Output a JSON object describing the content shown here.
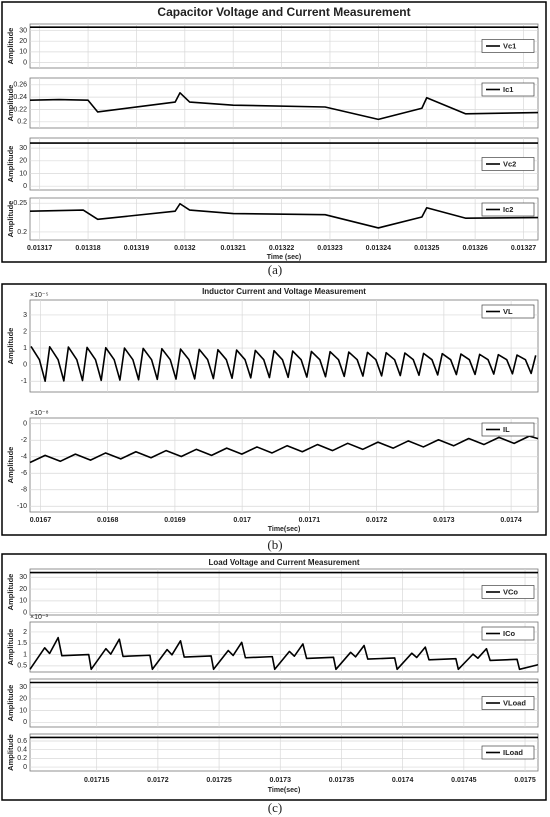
{
  "chart_data": [
    {
      "type": "line",
      "title": "Capacitor Voltage and Current Measurement",
      "xlabel": "Time (sec)",
      "caption": "(a)",
      "grid": true,
      "xlim": [
        0.013168,
        0.013273
      ],
      "xticks": [
        0.01317,
        0.01318,
        0.01319,
        0.0132,
        0.01321,
        0.01322,
        0.01323,
        0.01324,
        0.01325,
        0.01326,
        0.01327
      ],
      "subplots": [
        {
          "ylabel": "Amplitude",
          "ylim": [
            -5,
            36
          ],
          "yticks": [
            0,
            10,
            20,
            30
          ],
          "legend": "east",
          "series": [
            {
              "name": "Vc1",
              "color": "#000000",
              "x": [
                0.013168,
                0.013273
              ],
              "values": [
                33,
                33
              ]
            }
          ]
        },
        {
          "ylabel": "Amplitude",
          "ylim": [
            0.19,
            0.271
          ],
          "yticks": [
            0.2,
            0.22,
            0.24,
            0.26
          ],
          "legend": "northeast",
          "series": [
            {
              "name": "Ic1",
              "color": "#000000",
              "x": [
                0.013168,
                0.013174,
                0.01318,
                0.013182,
                0.013198,
                0.013199,
                0.013201,
                0.01321,
                0.013229,
                0.01324,
                0.013249,
                0.01325,
                0.013258,
                0.013273
              ],
              "values": [
                0.235,
                0.236,
                0.235,
                0.216,
                0.232,
                0.247,
                0.232,
                0.227,
                0.224,
                0.204,
                0.222,
                0.239,
                0.213,
                0.215
              ]
            }
          ]
        },
        {
          "ylabel": "Amplitude",
          "ylim": [
            -3,
            38
          ],
          "yticks": [
            0,
            10,
            20,
            30
          ],
          "legend": "east",
          "series": [
            {
              "name": "Vc2",
              "color": "#000000",
              "x": [
                0.013168,
                0.013273
              ],
              "values": [
                34,
                34
              ]
            }
          ]
        },
        {
          "ylabel": "Amplitude",
          "ylim": [
            0.186,
            0.259
          ],
          "yticks": [
            0.2,
            0.25
          ],
          "legend": "northeast",
          "series": [
            {
              "name": "Ic2",
              "color": "#000000",
              "x": [
                0.013168,
                0.013179,
                0.013182,
                0.013198,
                0.013199,
                0.013201,
                0.01321,
                0.013229,
                0.01324,
                0.013249,
                0.01325,
                0.013258,
                0.013273
              ],
              "values": [
                0.236,
                0.238,
                0.222,
                0.236,
                0.249,
                0.238,
                0.232,
                0.23,
                0.207,
                0.226,
                0.242,
                0.224,
                0.225
              ]
            }
          ]
        }
      ]
    },
    {
      "type": "line",
      "title": "Inductor Current and Voltage Measurement",
      "xlabel": "Time(sec)",
      "caption": "(b)",
      "grid": true,
      "xlim": [
        0.0166845,
        0.01744
      ],
      "xticks": [
        0.0167,
        0.0168,
        0.0169,
        0.017,
        0.0171,
        0.0172,
        0.0173,
        0.0174
      ],
      "subplots": [
        {
          "ylabel": "Amplitude",
          "yexponent_label": "×10⁻⁵",
          "ylim": [
            -1.65,
            3.9
          ],
          "yticks": [
            -1,
            0,
            1,
            2,
            3
          ],
          "legend": "northeast",
          "series": [
            {
              "name": "VL",
              "color": "#000000",
              "x": [
                0.016686,
                0.0166985,
                0.016707,
                0.0167138,
                0.0167263,
                0.0167348,
                0.0167416,
                0.0167541,
                0.0167626,
                0.0167694,
                0.0167819,
                0.0167904,
                0.0167972,
                0.0168097,
                0.0168182,
                0.016825,
                0.0168375,
                0.016846,
                0.0168528,
                0.0168653,
                0.0168738,
                0.0168806,
                0.0168931,
                0.0169016,
                0.0169084,
                0.0169209,
                0.0169294,
                0.0169362,
                0.0169487,
                0.0169572,
                0.016964,
                0.0169765,
                0.016985,
                0.0169918,
                0.0170043,
                0.0170128,
                0.0170196,
                0.0170321,
                0.0170406,
                0.0170474,
                0.0170599,
                0.0170684,
                0.0170752,
                0.0170877,
                0.0170962,
                0.017103,
                0.0171155,
                0.017124,
                0.0171308,
                0.0171433,
                0.0171518,
                0.0171586,
                0.0171711,
                0.0171796,
                0.0171864,
                0.0171989,
                0.0172074,
                0.0172142,
                0.0172267,
                0.0172352,
                0.017242,
                0.0172545,
                0.017263,
                0.0172698,
                0.0172823,
                0.0172908,
                0.0172976,
                0.0173101,
                0.0173186,
                0.0173254,
                0.0173379,
                0.0173464,
                0.0173532,
                0.0173657,
                0.0173742,
                0.017381,
                0.0173935,
                0.017402,
                0.0174088,
                0.0174213,
                0.0174298,
                0.0174366
              ],
              "values": [
                1.1,
                0.3,
                -1.0,
                1.08,
                0.3,
                -0.98,
                1.06,
                0.3,
                -0.96,
                1.04,
                0.3,
                -0.95,
                1.02,
                0.3,
                -0.93,
                1.0,
                0.3,
                -0.91,
                0.98,
                0.3,
                -0.89,
                0.96,
                0.3,
                -0.87,
                0.94,
                0.3,
                -0.86,
                0.92,
                0.3,
                -0.84,
                0.9,
                0.3,
                -0.82,
                0.88,
                0.3,
                -0.8,
                0.86,
                0.3,
                -0.78,
                0.84,
                0.3,
                -0.77,
                0.82,
                0.3,
                -0.75,
                0.8,
                0.3,
                -0.73,
                0.78,
                0.3,
                -0.71,
                0.76,
                0.3,
                -0.69,
                0.74,
                0.3,
                -0.68,
                0.72,
                0.3,
                -0.66,
                0.7,
                0.3,
                -0.64,
                0.68,
                0.3,
                -0.62,
                0.66,
                0.3,
                -0.6,
                0.64,
                0.3,
                -0.59,
                0.62,
                0.3,
                -0.57,
                0.6,
                0.3,
                -0.55,
                0.58,
                0.3,
                -0.53,
                0.56
              ]
            }
          ]
        },
        {
          "ylabel": "Amplitude",
          "yexponent_label": "×10⁻⁸",
          "ylim": [
            -10.7,
            0.7
          ],
          "yticks": [
            -10,
            -8,
            -6,
            -4,
            -2,
            0
          ],
          "legend": "northeast",
          "series": [
            {
              "name": "IL",
              "color": "#000000",
              "x": [
                0.0166845,
                0.016707,
                0.0167295,
                0.016752,
                0.0167745,
                0.016797,
                0.0168195,
                0.016842,
                0.0168645,
                0.016887,
                0.0169095,
                0.016932,
                0.0169545,
                0.016977,
                0.0169995,
                0.017022,
                0.0170445,
                0.017067,
                0.0170895,
                0.017112,
                0.0171345,
                0.017157,
                0.0171795,
                0.017202,
                0.0172245,
                0.017247,
                0.0172695,
                0.017292,
                0.0173145,
                0.017337,
                0.0173595,
                0.017382,
                0.0174045,
                0.017427,
                0.01744
              ],
              "values": [
                -4.7,
                -3.83,
                -4.55,
                -3.68,
                -4.41,
                -3.54,
                -4.26,
                -3.39,
                -4.12,
                -3.25,
                -3.97,
                -3.1,
                -3.83,
                -2.95,
                -3.68,
                -2.81,
                -3.54,
                -2.66,
                -3.39,
                -2.52,
                -3.25,
                -2.37,
                -3.1,
                -2.23,
                -2.96,
                -2.08,
                -2.81,
                -1.94,
                -2.67,
                -1.79,
                -2.52,
                -1.65,
                -2.38,
                -1.5,
                -1.8
              ]
            }
          ]
        }
      ]
    },
    {
      "type": "line",
      "title": "Load Voltage and Current Measurement",
      "xlabel": "Time(sec)",
      "caption": "(c)",
      "grid": true,
      "xlim": [
        0.0170955,
        0.0175106
      ],
      "xticks": [
        0.01715,
        0.0172,
        0.01725,
        0.0173,
        0.01735,
        0.0174,
        0.01745,
        0.0175
      ],
      "subplots": [
        {
          "ylabel": "Amplitude",
          "ylim": [
            -2,
            37
          ],
          "yticks": [
            0,
            10,
            20,
            30
          ],
          "legend": "east",
          "series": [
            {
              "name": "VCo",
              "color": "#000000",
              "x": [
                0.0170955,
                0.0175106
              ],
              "values": [
                34,
                34
              ]
            }
          ]
        },
        {
          "ylabel": "Amplitude",
          "yexponent_label": "×10⁻³",
          "ylim": [
            0.23,
            2.44
          ],
          "yticks": [
            0.5,
            1,
            1.5,
            2
          ],
          "legend": "northeast",
          "series": [
            {
              "name": "ICo",
              "color": "#000000",
              "x": [
                0.0170955,
                0.0171075,
                0.0171115,
                0.0171185,
                0.0171215,
                0.0171435,
                0.0171455,
                0.0171575,
                0.0171615,
                0.0171685,
                0.0171715,
                0.0171935,
                0.0171955,
                0.0172075,
                0.0172115,
                0.0172185,
                0.0172215,
                0.0172435,
                0.0172455,
                0.0172575,
                0.0172615,
                0.0172685,
                0.0172715,
                0.0172935,
                0.0172955,
                0.0173075,
                0.0173115,
                0.0173185,
                0.0173215,
                0.0173435,
                0.0173455,
                0.0173575,
                0.0173615,
                0.0173685,
                0.0173715,
                0.0173935,
                0.0173955,
                0.0174075,
                0.0174115,
                0.0174185,
                0.0174215,
                0.0174435,
                0.0174455,
                0.0174575,
                0.0174615,
                0.0174685,
                0.0174715,
                0.0174935,
                0.0174955,
                0.0175106
              ],
              "values": [
                0.35,
                1.3,
                1.05,
                1.75,
                0.95,
                1.0,
                0.35,
                1.26,
                1.02,
                1.68,
                0.92,
                0.97,
                0.35,
                1.22,
                0.99,
                1.61,
                0.89,
                0.94,
                0.35,
                1.18,
                0.96,
                1.54,
                0.86,
                0.91,
                0.35,
                1.14,
                0.93,
                1.47,
                0.83,
                0.88,
                0.35,
                1.1,
                0.9,
                1.4,
                0.8,
                0.85,
                0.35,
                1.06,
                0.87,
                1.33,
                0.77,
                0.82,
                0.35,
                1.02,
                0.84,
                1.26,
                0.74,
                0.79,
                0.35,
                0.55
              ]
            }
          ]
        },
        {
          "ylabel": "Amplitude",
          "ylim": [
            -4,
            37
          ],
          "yticks": [
            0,
            10,
            20,
            30
          ],
          "legend": "east",
          "series": [
            {
              "name": "VLoad",
              "color": "#000000",
              "x": [
                0.0170955,
                0.0175106
              ],
              "values": [
                34,
                34
              ]
            }
          ]
        },
        {
          "ylabel": "Amplitude",
          "ylim": [
            -0.09,
            0.76
          ],
          "yticks": [
            0,
            0.2,
            0.4,
            0.6
          ],
          "legend": "east",
          "series": [
            {
              "name": "ILoad",
              "color": "#000000",
              "x": [
                0.0170955,
                0.0175106
              ],
              "values": [
                0.68,
                0.68
              ]
            }
          ]
        }
      ]
    }
  ]
}
